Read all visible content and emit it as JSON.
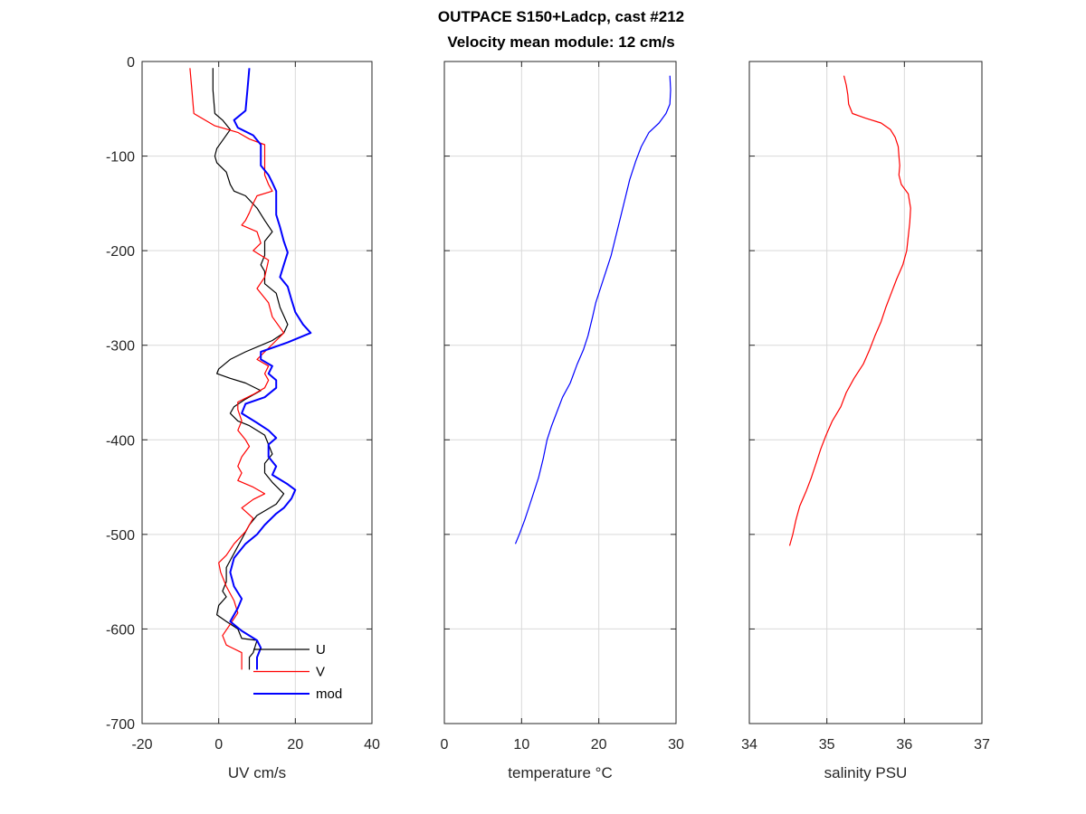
{
  "title_line1": "OUTPACE S150+Ladcp, cast #212",
  "title_line2": "Velocity mean module:  12 cm/s",
  "chart_data": [
    {
      "type": "line",
      "xlabel": "UV cm/s",
      "xlim": [
        -20,
        40
      ],
      "ylim": [
        -700,
        0
      ],
      "xticks": [
        -20,
        0,
        20,
        40
      ],
      "yticks": [
        0,
        -100,
        -200,
        -300,
        -400,
        -500,
        -600,
        -700
      ],
      "grid": true,
      "legend": {
        "placement": "bottom-right"
      },
      "series": [
        {
          "name": "U",
          "color": "#000000",
          "width": 1.2,
          "points": [
            [
              -1.5,
              -7
            ],
            [
              -1.5,
              -30
            ],
            [
              -1,
              -55
            ],
            [
              1,
              -62
            ],
            [
              3,
              -72
            ],
            [
              -0.5,
              -92
            ],
            [
              -1,
              -100
            ],
            [
              -0.5,
              -107
            ],
            [
              2,
              -117
            ],
            [
              3,
              -130
            ],
            [
              4,
              -137
            ],
            [
              7,
              -142
            ],
            [
              10,
              -155
            ],
            [
              12,
              -168
            ],
            [
              14,
              -180
            ],
            [
              12,
              -190
            ],
            [
              12,
              -205
            ],
            [
              11,
              -215
            ],
            [
              12,
              -222
            ],
            [
              12,
              -235
            ],
            [
              15,
              -245
            ],
            [
              16,
              -260
            ],
            [
              18,
              -278
            ],
            [
              17,
              -287
            ],
            [
              14,
              -295
            ],
            [
              7,
              -307
            ],
            [
              3,
              -315
            ],
            [
              0,
              -325
            ],
            [
              -0.5,
              -330
            ],
            [
              3,
              -335
            ],
            [
              7,
              -340
            ],
            [
              11,
              -348
            ],
            [
              7,
              -357
            ],
            [
              4,
              -365
            ],
            [
              3,
              -372
            ],
            [
              5,
              -380
            ],
            [
              8,
              -385
            ],
            [
              12,
              -395
            ],
            [
              13,
              -405
            ],
            [
              14,
              -415
            ],
            [
              12,
              -425
            ],
            [
              12,
              -435
            ],
            [
              14,
              -445
            ],
            [
              17,
              -457
            ],
            [
              15,
              -468
            ],
            [
              10,
              -480
            ],
            [
              8,
              -490
            ],
            [
              6,
              -505
            ],
            [
              4,
              -520
            ],
            [
              2,
              -535
            ],
            [
              2,
              -550
            ],
            [
              1,
              -560
            ],
            [
              2,
              -566
            ],
            [
              0,
              -575
            ],
            [
              -0.5,
              -585
            ],
            [
              2,
              -592
            ],
            [
              5,
              -600
            ],
            [
              6,
              -610
            ],
            [
              10,
              -612
            ],
            [
              9,
              -625
            ],
            [
              8,
              -630
            ],
            [
              8,
              -643
            ]
          ]
        },
        {
          "name": "V",
          "color": "#ff0000",
          "width": 1.2,
          "points": [
            [
              -7.5,
              -7
            ],
            [
              -7,
              -30
            ],
            [
              -6.5,
              -55
            ],
            [
              -1,
              -68
            ],
            [
              5,
              -75
            ],
            [
              8,
              -82
            ],
            [
              12,
              -88
            ],
            [
              12,
              -100
            ],
            [
              12,
              -110
            ],
            [
              12,
              -120
            ],
            [
              13,
              -130
            ],
            [
              14,
              -137
            ],
            [
              10,
              -142
            ],
            [
              9,
              -150
            ],
            [
              8,
              -160
            ],
            [
              7,
              -168
            ],
            [
              6,
              -173
            ],
            [
              10,
              -180
            ],
            [
              11,
              -192
            ],
            [
              9,
              -200
            ],
            [
              13,
              -210
            ],
            [
              12,
              -228
            ],
            [
              10,
              -240
            ],
            [
              13,
              -255
            ],
            [
              14,
              -270
            ],
            [
              17,
              -287
            ],
            [
              15,
              -295
            ],
            [
              12,
              -307
            ],
            [
              10,
              -315
            ],
            [
              13,
              -322
            ],
            [
              12,
              -330
            ],
            [
              13,
              -337
            ],
            [
              12,
              -345
            ],
            [
              9,
              -352
            ],
            [
              5,
              -360
            ],
            [
              5,
              -368
            ],
            [
              6,
              -380
            ],
            [
              5,
              -390
            ],
            [
              7,
              -400
            ],
            [
              8,
              -407
            ],
            [
              6,
              -418
            ],
            [
              5,
              -428
            ],
            [
              6,
              -435
            ],
            [
              5,
              -443
            ],
            [
              9,
              -450
            ],
            [
              12,
              -457
            ],
            [
              9,
              -463
            ],
            [
              6,
              -472
            ],
            [
              9,
              -483
            ],
            [
              7,
              -497
            ],
            [
              4,
              -510
            ],
            [
              2,
              -522
            ],
            [
              0,
              -530
            ],
            [
              0.5,
              -540
            ],
            [
              2,
              -555
            ],
            [
              4,
              -570
            ],
            [
              5,
              -583
            ],
            [
              3,
              -595
            ],
            [
              1,
              -607
            ],
            [
              2,
              -617
            ],
            [
              6,
              -625
            ],
            [
              6,
              -643
            ]
          ]
        },
        {
          "name": "mod",
          "color": "#0000ff",
          "width": 2,
          "points": [
            [
              8,
              -7
            ],
            [
              7.5,
              -30
            ],
            [
              7,
              -52
            ],
            [
              4,
              -62
            ],
            [
              5,
              -70
            ],
            [
              9,
              -78
            ],
            [
              11,
              -88
            ],
            [
              11,
              -100
            ],
            [
              11,
              -110
            ],
            [
              13,
              -120
            ],
            [
              14,
              -128
            ],
            [
              15,
              -137
            ],
            [
              15,
              -150
            ],
            [
              15,
              -162
            ],
            [
              16,
              -175
            ],
            [
              17,
              -190
            ],
            [
              18,
              -202
            ],
            [
              17,
              -215
            ],
            [
              16,
              -228
            ],
            [
              18,
              -238
            ],
            [
              19,
              -252
            ],
            [
              20,
              -265
            ],
            [
              22,
              -278
            ],
            [
              24,
              -287
            ],
            [
              18,
              -297
            ],
            [
              11,
              -307
            ],
            [
              11,
              -315
            ],
            [
              14,
              -322
            ],
            [
              13,
              -330
            ],
            [
              15,
              -337
            ],
            [
              15,
              -345
            ],
            [
              12,
              -355
            ],
            [
              7,
              -362
            ],
            [
              6,
              -372
            ],
            [
              10,
              -382
            ],
            [
              13,
              -390
            ],
            [
              15,
              -398
            ],
            [
              13,
              -405
            ],
            [
              13,
              -418
            ],
            [
              15,
              -428
            ],
            [
              14,
              -437
            ],
            [
              18,
              -447
            ],
            [
              20,
              -453
            ],
            [
              19,
              -462
            ],
            [
              17,
              -472
            ],
            [
              15,
              -478
            ],
            [
              12,
              -490
            ],
            [
              10,
              -500
            ],
            [
              7,
              -510
            ],
            [
              4,
              -525
            ],
            [
              3,
              -540
            ],
            [
              4,
              -555
            ],
            [
              6,
              -568
            ],
            [
              5,
              -578
            ],
            [
              3,
              -592
            ],
            [
              6,
              -602
            ],
            [
              10,
              -612
            ],
            [
              11,
              -620
            ],
            [
              10,
              -630
            ],
            [
              10,
              -643
            ]
          ]
        }
      ]
    },
    {
      "type": "line",
      "xlabel": "temperature °C",
      "xlim": [
        0,
        30
      ],
      "ylim": [
        -700,
        0
      ],
      "xticks": [
        0,
        10,
        20,
        30
      ],
      "yticks": [
        0,
        -100,
        -200,
        -300,
        -400,
        -500,
        -600,
        -700
      ],
      "grid": true,
      "series": [
        {
          "color": "#0000ff",
          "width": 1.2,
          "points": [
            [
              29.2,
              -15
            ],
            [
              29.3,
              -30
            ],
            [
              29.2,
              -45
            ],
            [
              28.7,
              -55
            ],
            [
              27.8,
              -65
            ],
            [
              26.5,
              -75
            ],
            [
              25.5,
              -90
            ],
            [
              24.8,
              -105
            ],
            [
              24,
              -125
            ],
            [
              23.4,
              -145
            ],
            [
              22.8,
              -165
            ],
            [
              22.2,
              -185
            ],
            [
              21.6,
              -205
            ],
            [
              20.8,
              -225
            ],
            [
              20.2,
              -240
            ],
            [
              19.6,
              -255
            ],
            [
              19.2,
              -270
            ],
            [
              18.6,
              -290
            ],
            [
              18,
              -305
            ],
            [
              17.2,
              -320
            ],
            [
              16.3,
              -340
            ],
            [
              15.3,
              -355
            ],
            [
              14.6,
              -370
            ],
            [
              13.9,
              -385
            ],
            [
              13.3,
              -400
            ],
            [
              12.8,
              -420
            ],
            [
              12.2,
              -440
            ],
            [
              11.6,
              -455
            ],
            [
              11,
              -470
            ],
            [
              10.4,
              -485
            ],
            [
              9.7,
              -500
            ],
            [
              9.2,
              -510
            ]
          ]
        }
      ]
    },
    {
      "type": "line",
      "xlabel": "salinity PSU",
      "xlim": [
        34,
        37
      ],
      "ylim": [
        -700,
        0
      ],
      "xticks": [
        34,
        35,
        36,
        37
      ],
      "yticks": [
        0,
        -100,
        -200,
        -300,
        -400,
        -500,
        -600,
        -700
      ],
      "grid": true,
      "series": [
        {
          "color": "#ff0000",
          "width": 1.2,
          "points": [
            [
              35.22,
              -15
            ],
            [
              35.25,
              -25
            ],
            [
              35.27,
              -35
            ],
            [
              35.28,
              -45
            ],
            [
              35.33,
              -55
            ],
            [
              35.5,
              -60
            ],
            [
              35.7,
              -65
            ],
            [
              35.82,
              -72
            ],
            [
              35.88,
              -80
            ],
            [
              35.92,
              -90
            ],
            [
              35.93,
              -100
            ],
            [
              35.94,
              -110
            ],
            [
              35.93,
              -120
            ],
            [
              35.96,
              -130
            ],
            [
              36.05,
              -140
            ],
            [
              36.08,
              -155
            ],
            [
              36.07,
              -170
            ],
            [
              36.05,
              -185
            ],
            [
              36.03,
              -200
            ],
            [
              35.98,
              -215
            ],
            [
              35.9,
              -230
            ],
            [
              35.83,
              -245
            ],
            [
              35.76,
              -260
            ],
            [
              35.7,
              -275
            ],
            [
              35.62,
              -290
            ],
            [
              35.55,
              -305
            ],
            [
              35.47,
              -320
            ],
            [
              35.35,
              -335
            ],
            [
              35.25,
              -350
            ],
            [
              35.18,
              -365
            ],
            [
              35.07,
              -380
            ],
            [
              34.99,
              -395
            ],
            [
              34.92,
              -410
            ],
            [
              34.86,
              -425
            ],
            [
              34.8,
              -440
            ],
            [
              34.73,
              -455
            ],
            [
              34.65,
              -470
            ],
            [
              34.6,
              -485
            ],
            [
              34.56,
              -500
            ],
            [
              34.52,
              -512
            ]
          ]
        }
      ]
    }
  ]
}
